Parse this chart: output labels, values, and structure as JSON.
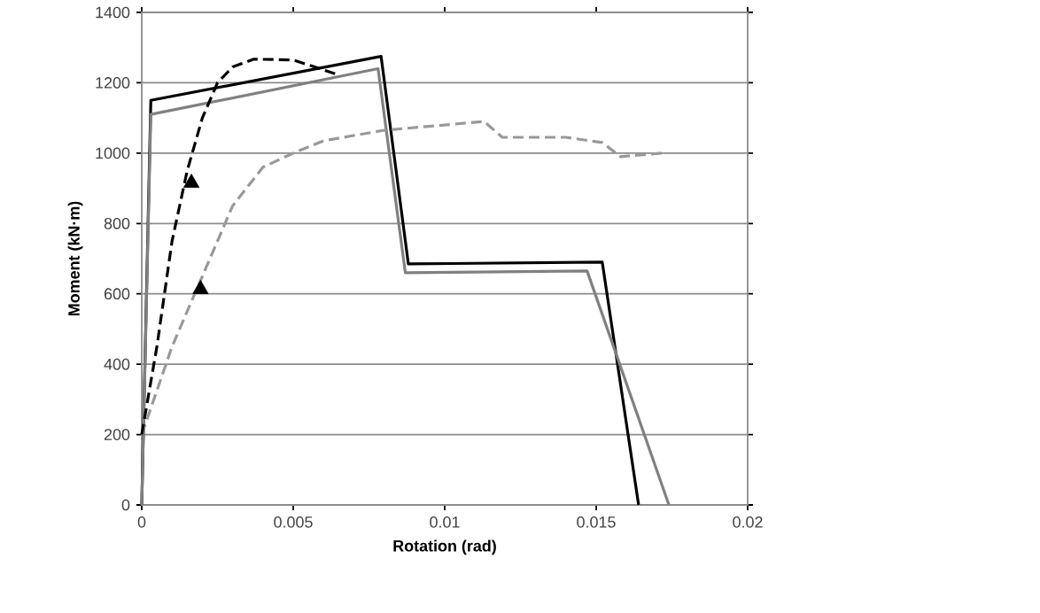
{
  "chart_data": {
    "type": "line",
    "xlabel": "Rotation (rad)",
    "ylabel": "Moment (kN·m)",
    "xlim": [
      0,
      0.02
    ],
    "xticks": [
      0,
      0.005,
      0.01,
      0.015,
      0.02
    ],
    "ylim": [
      0,
      1400
    ],
    "yticks": [
      0,
      200,
      400,
      600,
      800,
      1000,
      1200,
      1400
    ],
    "grid": "y",
    "series": [
      {
        "color": "#000000",
        "line_style": "solid",
        "x": [
          0,
          0.0003,
          0.0079,
          0.0088,
          0.0152,
          0.0164
        ],
        "values": [
          0,
          1150,
          1275,
          685,
          690,
          0
        ]
      },
      {
        "color": "#808080",
        "line_style": "solid",
        "x": [
          0,
          0.0003,
          0.0078,
          0.0087,
          0.0147,
          0.0174
        ],
        "values": [
          0,
          1110,
          1240,
          660,
          665,
          0
        ]
      },
      {
        "color": "#999999",
        "line_style": "dashed",
        "x": [
          0,
          0.001,
          0.002,
          0.003,
          0.004,
          0.005,
          0.006,
          0.008,
          0.01,
          0.0113,
          0.0119,
          0.014,
          0.0152,
          0.0158,
          0.0172
        ],
        "values": [
          200,
          450,
          650,
          850,
          960,
          1000,
          1035,
          1065,
          1080,
          1090,
          1045,
          1045,
          1030,
          990,
          1000
        ]
      },
      {
        "color": "#000000",
        "line_style": "dashed",
        "x": [
          0,
          0.0005,
          0.001,
          0.0015,
          0.002,
          0.0025,
          0.003,
          0.0037,
          0.005,
          0.0064
        ],
        "values": [
          200,
          450,
          750,
          950,
          1100,
          1200,
          1245,
          1267,
          1265,
          1225
        ]
      },
      {
        "type": "scatter",
        "color": "#000000",
        "marker": "triangle",
        "x": [
          0.00164,
          0.00194
        ],
        "values": [
          915,
          613
        ]
      }
    ]
  }
}
